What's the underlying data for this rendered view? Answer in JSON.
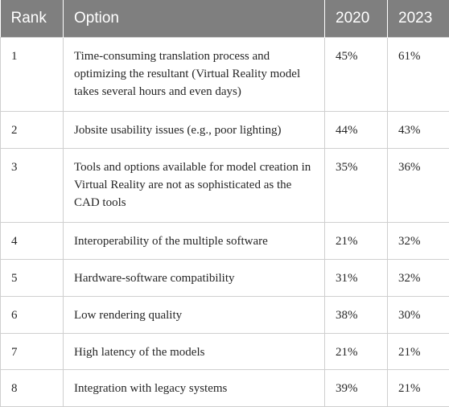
{
  "table": {
    "headers": [
      "Rank",
      "Option",
      "2020",
      "2023"
    ],
    "rows": [
      {
        "rank": "1",
        "option": "Time-consuming translation process and optimizing the resultant (Virtual Reality model takes several hours and even days)",
        "y2020": "45%",
        "y2023": "61%"
      },
      {
        "rank": "2",
        "option": "Jobsite usability issues (e.g., poor lighting)",
        "y2020": "44%",
        "y2023": "43%"
      },
      {
        "rank": "3",
        "option": "Tools and options available for model creation in Virtual Reality are not as sophisticated as the CAD tools",
        "y2020": "35%",
        "y2023": "36%"
      },
      {
        "rank": "4",
        "option": "Interoperability of the multiple software",
        "y2020": "21%",
        "y2023": "32%"
      },
      {
        "rank": "5",
        "option": "Hardware-software compatibility",
        "y2020": "31%",
        "y2023": "32%"
      },
      {
        "rank": "6",
        "option": "Low rendering quality",
        "y2020": "38%",
        "y2023": "30%"
      },
      {
        "rank": "7",
        "option": "High latency of the models",
        "y2020": "21%",
        "y2023": "21%"
      },
      {
        "rank": "8",
        "option": "Integration with legacy systems",
        "y2020": "39%",
        "y2023": "21%"
      }
    ]
  }
}
